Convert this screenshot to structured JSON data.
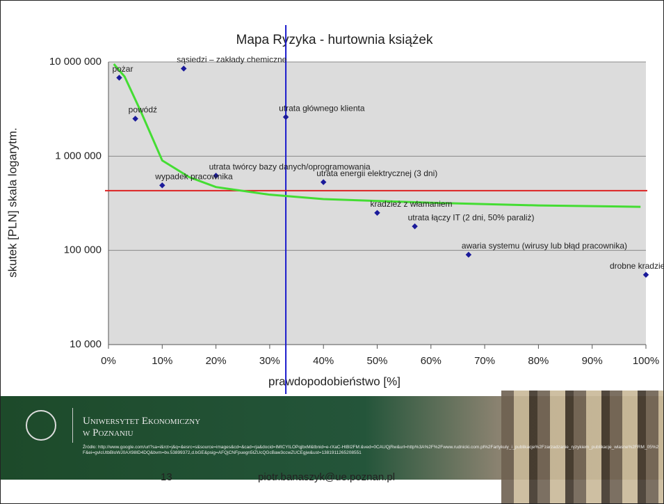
{
  "chart_data": {
    "type": "scatter",
    "title": "Mapa Ryzyka - hurtownia książek",
    "x_label": "prawdopodobieństwo [%]",
    "y_label": "skutek [PLN] skala logarytm.",
    "y_scale": "log",
    "grid": true,
    "xlim": [
      0,
      100
    ],
    "xticks": [
      {
        "value": 0,
        "label": "0%"
      },
      {
        "value": 10,
        "label": "10%"
      },
      {
        "value": 20,
        "label": "20%"
      },
      {
        "value": 30,
        "label": "30%"
      },
      {
        "value": 40,
        "label": "40%"
      },
      {
        "value": 50,
        "label": "50%"
      },
      {
        "value": 60,
        "label": "60%"
      },
      {
        "value": 70,
        "label": "70%"
      },
      {
        "value": 80,
        "label": "80%"
      },
      {
        "value": 90,
        "label": "90%"
      },
      {
        "value": 100,
        "label": "100%"
      }
    ],
    "ylim": [
      10000,
      10000000
    ],
    "yticks": [
      {
        "value": 10000,
        "label": "10 000"
      },
      {
        "value": 100000,
        "label": "100 000"
      },
      {
        "value": 1000000,
        "label": "1 000 000"
      },
      {
        "value": 10000000,
        "label": "10 000 000"
      }
    ],
    "color": "#1a1a9a",
    "x": [
      2,
      14,
      5,
      33,
      20,
      10,
      40,
      50,
      57,
      67,
      100
    ],
    "values": [
      6800000,
      8500000,
      2500000,
      2600000,
      620000,
      490000,
      530000,
      250000,
      180000,
      90000,
      55000
    ],
    "labels": [
      "pożar",
      "sąsiedzi – zakłady chemiczne",
      "powódź",
      "utrata głównego klienta",
      "utrata twórcy bazy danych/oprogramowania",
      "wypadek pracownika",
      "utrata energii elektrycznej (3 dni)",
      "kradzież z włamaniem",
      "utrata łączy IT (2 dni, 50% paraliż)",
      "awaria systemu (wirusy lub błąd pracownika)",
      "drobne kradzieże"
    ],
    "curve": {
      "color": "#44dd33",
      "x": [
        1,
        3,
        6,
        10,
        15,
        20,
        30,
        40,
        60,
        80,
        99
      ],
      "values": [
        9500000,
        7000000,
        3000000,
        900000,
        600000,
        470000,
        390000,
        350000,
        320000,
        300000,
        290000
      ]
    },
    "vline": {
      "x": 33,
      "color": "#1a1acc"
    },
    "hline": {
      "value": 430000,
      "color": "#dd2222"
    }
  },
  "footer": {
    "university_line1": "Uniwersytet Ekonomiczny",
    "university_line2": "w Poznaniu",
    "source": "Źródło: http://www.google.com/url?sa=i&rct=j&q=&esrc=s&source=images&cd=&cad=rja&docid=IMICYILOPqjbxM&tbnid=e-rXaC-HtBl2FM:&ved=0CAUQjRw&url=http%3A%2F%2Fwww.rudnicki.com.pl%2Fartykuly_i_publikacje%2Fzarzadzanie_ryzykiem_publikacje_wlasne%2FRM_05%2F&ei=gvlcUtbBloWJ0AX98ID4DQ&bvm=bv.53899372,d.bGE&psig=AFQjCNFpuegn5tZUcQGcBaw3ccwZUCEgjw&ust=1381911265208551",
    "page_number": "13",
    "email": "piotr.banaszyk@ue.poznan.pl"
  }
}
